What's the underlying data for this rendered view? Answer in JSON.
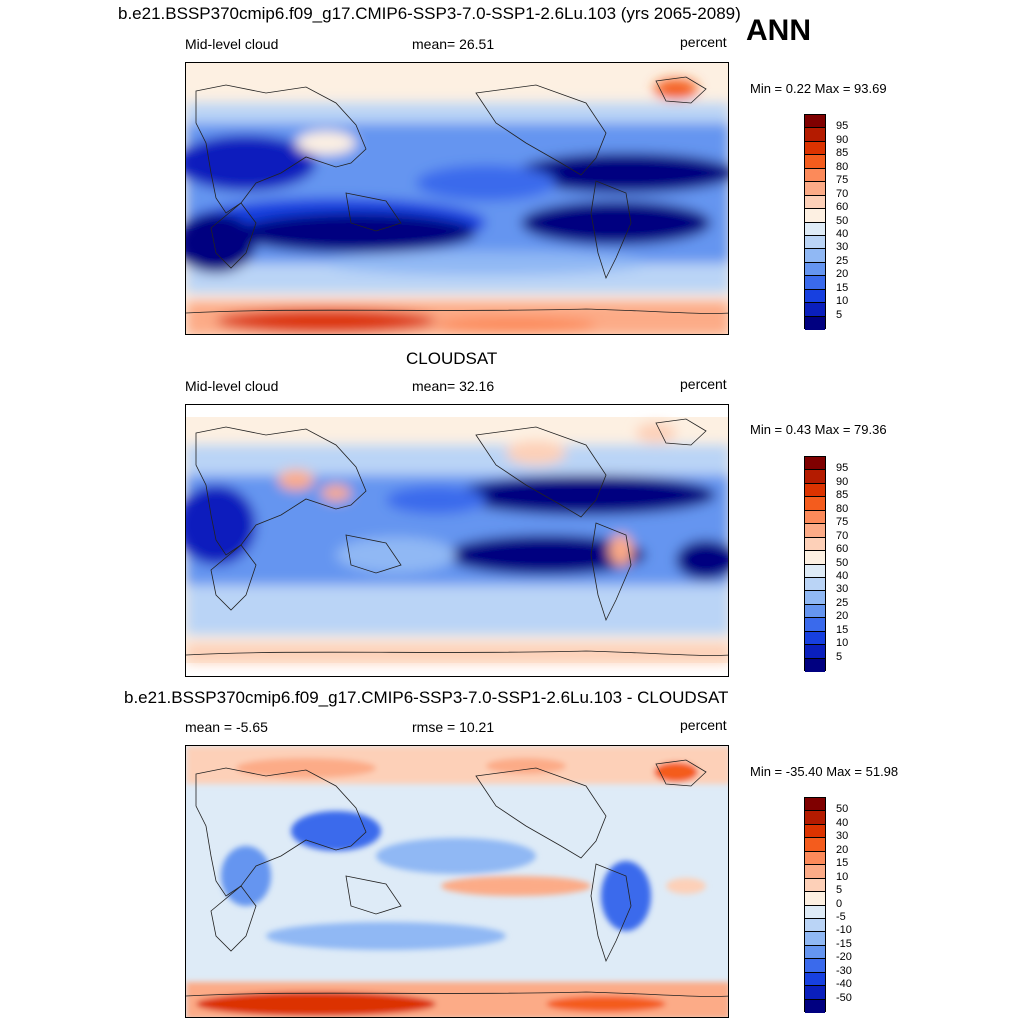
{
  "figure": {
    "season": "ANN",
    "top_title": "b.e21.BSSP370cmip6.f09_g17.CMIP6-SSP3-7.0-SSP1-2.6Lu.103 (yrs 2065-2089)",
    "mid_title": "CLOUDSAT",
    "diff_title": "b.e21.BSSP370cmip6.f09_g17.CMIP6-SSP3-7.0-SSP1-2.6Lu.103 - CLOUDSAT"
  },
  "panels": [
    {
      "left_label": "Mid-level cloud",
      "center_label": "mean=  26.51",
      "units": "percent",
      "minmax": "Min =   0.22 Max =  93.69",
      "colorbar_labels": [
        "95",
        "90",
        "85",
        "80",
        "75",
        "70",
        "60",
        "50",
        "40",
        "30",
        "25",
        "20",
        "15",
        "10",
        "5"
      ]
    },
    {
      "left_label": "Mid-level cloud",
      "center_label": "mean=  32.16",
      "units": "percent",
      "minmax": "Min =   0.43 Max =  79.36",
      "colorbar_labels": [
        "95",
        "90",
        "85",
        "80",
        "75",
        "70",
        "60",
        "50",
        "40",
        "30",
        "25",
        "20",
        "15",
        "10",
        "5"
      ]
    },
    {
      "left_label": "mean =  -5.65",
      "center_label": "rmse =  10.21",
      "units": "percent",
      "minmax": "Min = -35.40 Max =  51.98",
      "colorbar_labels": [
        "50",
        "40",
        "30",
        "20",
        "15",
        "10",
        "5",
        "0",
        "-5",
        "-10",
        "-15",
        "-20",
        "-30",
        "-40",
        "-50"
      ]
    }
  ],
  "colorbar_colors": [
    "#7f0000",
    "#b41b00",
    "#dc3300",
    "#f45c1d",
    "#fc8a5a",
    "#fcab87",
    "#fdd0b8",
    "#fdf0e2",
    "#deebf7",
    "#bad4f6",
    "#90b8f4",
    "#6595f0",
    "#3a6aec",
    "#1740e0",
    "#0a1fbd",
    "#000080"
  ]
}
